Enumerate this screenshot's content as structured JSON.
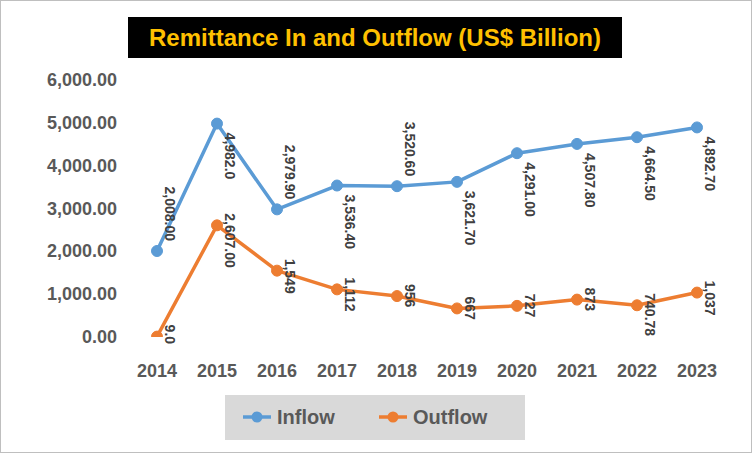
{
  "chart_data": {
    "type": "line",
    "title": "Remittance In and Outflow (US$ Billion)",
    "categories": [
      "2014",
      "2015",
      "2016",
      "2017",
      "2018",
      "2019",
      "2020",
      "2021",
      "2022",
      "2023"
    ],
    "series": [
      {
        "name": "Inflow",
        "color": "#5b9bd5",
        "marker": "circle",
        "values": [
          2008,
          4982,
          2979.9,
          3536.4,
          3520.6,
          3621.7,
          4291,
          4507.8,
          4664.5,
          4892.7
        ],
        "value_labels": [
          "2,008.00",
          "4,982.0",
          "2,979.90",
          "3,536.40",
          "3,520.60",
          "3,621.70",
          "4,291.00",
          "4,507.80",
          "4,664.50",
          "4,892.70"
        ]
      },
      {
        "name": "Outflow",
        "color": "#ed7d31",
        "marker": "circle",
        "values": [
          9,
          2607,
          1549,
          1112,
          956,
          667,
          727,
          873,
          740.78,
          1037
        ],
        "value_labels": [
          "9.0",
          "2,607.00",
          "1,549",
          "1,112",
          "956",
          "667",
          "727",
          "873",
          "740.78",
          "1,037"
        ]
      }
    ],
    "ylim": [
      0,
      6000
    ],
    "yticks": [
      {
        "value": 0,
        "label": "0.00"
      },
      {
        "value": 1000,
        "label": "1,000.00"
      },
      {
        "value": 2000,
        "label": "2,000.00"
      },
      {
        "value": 3000,
        "label": "3,000.00"
      },
      {
        "value": 4000,
        "label": "4,000.00"
      },
      {
        "value": 5000,
        "label": "5,000.00"
      },
      {
        "value": 6000,
        "label": "6,000.00"
      }
    ],
    "grid": false,
    "legend": "bottom",
    "data_labels": true
  }
}
